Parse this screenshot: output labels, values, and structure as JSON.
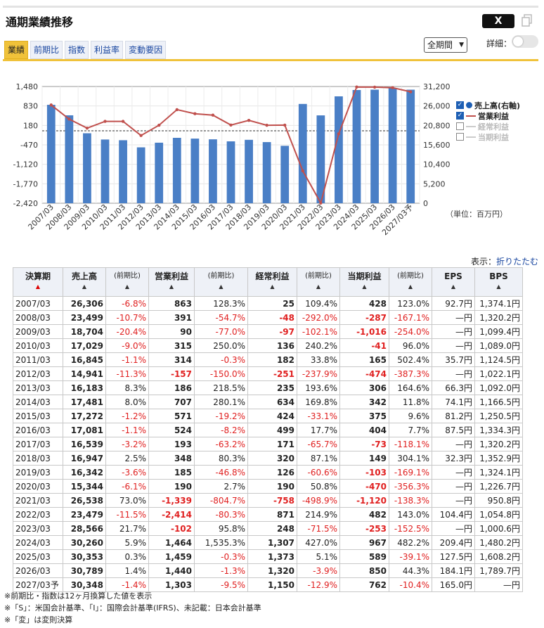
{
  "title": "通期業績推移",
  "share_x_label": "X",
  "tabs": [
    "業績",
    "前期比",
    "指数",
    "利益率",
    "変動要因"
  ],
  "active_tab": "業績",
  "period_select": "全期間",
  "detail_label": "詳細：",
  "unit_label": "（単位：百万円）",
  "display_label": "表示：",
  "collapse_link": "折りたたむ",
  "legend": [
    {
      "name": "売上高(右軸)",
      "checked": true
    },
    {
      "name": "営業利益",
      "checked": true
    },
    {
      "name": "経常利益",
      "checked": false
    },
    {
      "name": "当期利益",
      "checked": false
    }
  ],
  "colors": {
    "bar": "#4a7fc6",
    "line": "#c0504d",
    "accent": "#f0c23a",
    "negative": "#e02020"
  },
  "chart_data": {
    "type": "bar",
    "categories": [
      "2007/03",
      "2008/03",
      "2009/03",
      "2010/03",
      "2011/03",
      "2012/03",
      "2013/03",
      "2014/03",
      "2015/03",
      "2016/03",
      "2017/03",
      "2018/03",
      "2019/03",
      "2020/03",
      "2021/03",
      "2022/03",
      "2023/03",
      "2024/03",
      "2025/03",
      "2026/03",
      "2027/03予"
    ],
    "series": [
      {
        "name": "売上高(右軸)",
        "type": "bar",
        "axis": "right",
        "values": [
          26306,
          23499,
          18704,
          17029,
          16845,
          14941,
          16183,
          17481,
          17272,
          17081,
          16539,
          16947,
          16342,
          15344,
          26538,
          23479,
          28566,
          30260,
          30353,
          30789,
          30348
        ]
      },
      {
        "name": "営業利益",
        "type": "line",
        "axis": "left",
        "values": [
          863,
          391,
          90,
          315,
          314,
          -157,
          186,
          707,
          571,
          524,
          193,
          348,
          185,
          190,
          -1339,
          -2414,
          -102,
          1464,
          1459,
          1440,
          1303
        ]
      }
    ],
    "left_ticks": [
      "1,480",
      "830",
      "180",
      "-470",
      "-1,120",
      "-1,770",
      "-2,420"
    ],
    "right_ticks": [
      "31,200",
      "26,000",
      "20,800",
      "15,600",
      "10,400",
      "5,200",
      "0"
    ],
    "ylim_left": [
      -2420,
      1480
    ],
    "ylim_right": [
      0,
      31200
    ],
    "zero_line": "dashed",
    "legend_position": "right"
  },
  "table": {
    "headers": [
      "決算期",
      "売上高",
      "(前期比)",
      "営業利益",
      "(前期比)",
      "経常利益",
      "(前期比)",
      "当期利益",
      "(前期比)",
      "EPS",
      "BPS"
    ],
    "rows": [
      [
        "2007/03",
        "26,306",
        "-6.8%",
        "863",
        "128.3%",
        "25",
        "109.4%",
        "428",
        "123.0%",
        "92.7円",
        "1,374.1円"
      ],
      [
        "2008/03",
        "23,499",
        "-10.7%",
        "391",
        "-54.7%",
        "-48",
        "-292.0%",
        "-287",
        "-167.1%",
        "—円",
        "1,320.2円"
      ],
      [
        "2009/03",
        "18,704",
        "-20.4%",
        "90",
        "-77.0%",
        "-97",
        "-102.1%",
        "-1,016",
        "-254.0%",
        "—円",
        "1,099.4円"
      ],
      [
        "2010/03",
        "17,029",
        "-9.0%",
        "315",
        "250.0%",
        "136",
        "240.2%",
        "-41",
        "96.0%",
        "—円",
        "1,089.0円"
      ],
      [
        "2011/03",
        "16,845",
        "-1.1%",
        "314",
        "-0.3%",
        "182",
        "33.8%",
        "165",
        "502.4%",
        "35.7円",
        "1,124.5円"
      ],
      [
        "2012/03",
        "14,941",
        "-11.3%",
        "-157",
        "-150.0%",
        "-251",
        "-237.9%",
        "-474",
        "-387.3%",
        "—円",
        "1,022.1円"
      ],
      [
        "2013/03",
        "16,183",
        "8.3%",
        "186",
        "218.5%",
        "235",
        "193.6%",
        "306",
        "164.6%",
        "66.3円",
        "1,092.0円"
      ],
      [
        "2014/03",
        "17,481",
        "8.0%",
        "707",
        "280.1%",
        "634",
        "169.8%",
        "342",
        "11.8%",
        "74.1円",
        "1,166.5円"
      ],
      [
        "2015/03",
        "17,272",
        "-1.2%",
        "571",
        "-19.2%",
        "424",
        "-33.1%",
        "375",
        "9.6%",
        "81.2円",
        "1,250.5円"
      ],
      [
        "2016/03",
        "17,081",
        "-1.1%",
        "524",
        "-8.2%",
        "499",
        "17.7%",
        "404",
        "7.7%",
        "87.5円",
        "1,334.3円"
      ],
      [
        "2017/03",
        "16,539",
        "-3.2%",
        "193",
        "-63.2%",
        "171",
        "-65.7%",
        "-73",
        "-118.1%",
        "—円",
        "1,320.2円"
      ],
      [
        "2018/03",
        "16,947",
        "2.5%",
        "348",
        "80.3%",
        "320",
        "87.1%",
        "149",
        "304.1%",
        "32.3円",
        "1,352.9円"
      ],
      [
        "2019/03",
        "16,342",
        "-3.6%",
        "185",
        "-46.8%",
        "126",
        "-60.6%",
        "-103",
        "-169.1%",
        "—円",
        "1,324.1円"
      ],
      [
        "2020/03",
        "15,344",
        "-6.1%",
        "190",
        "2.7%",
        "190",
        "50.8%",
        "-470",
        "-356.3%",
        "—円",
        "1,226.7円"
      ],
      [
        "2021/03",
        "26,538",
        "73.0%",
        "-1,339",
        "-804.7%",
        "-758",
        "-498.9%",
        "-1,120",
        "-138.3%",
        "—円",
        "950.8円"
      ],
      [
        "2022/03",
        "23,479",
        "-11.5%",
        "-2,414",
        "-80.3%",
        "871",
        "214.9%",
        "482",
        "143.0%",
        "104.4円",
        "1,054.8円"
      ],
      [
        "2023/03",
        "28,566",
        "21.7%",
        "-102",
        "95.8%",
        "248",
        "-71.5%",
        "-253",
        "-152.5%",
        "—円",
        "1,000.6円"
      ],
      [
        "2024/03",
        "30,260",
        "5.9%",
        "1,464",
        "1,535.3%",
        "1,307",
        "427.0%",
        "967",
        "482.2%",
        "209.4円",
        "1,480.2円"
      ],
      [
        "2025/03",
        "30,353",
        "0.3%",
        "1,459",
        "-0.3%",
        "1,373",
        "5.1%",
        "589",
        "-39.1%",
        "127.5円",
        "1,608.2円"
      ],
      [
        "2026/03",
        "30,789",
        "1.4%",
        "1,440",
        "-1.3%",
        "1,320",
        "-3.9%",
        "850",
        "44.3%",
        "184.1円",
        "1,789.7円"
      ],
      [
        "2027/03予",
        "30,348",
        "-1.4%",
        "1,303",
        "-9.5%",
        "1,150",
        "-12.9%",
        "762",
        "-10.4%",
        "165.0円",
        "—円"
      ]
    ]
  },
  "notes": [
    "※前期比・指数は12ヶ月換算した値を表示",
    "※「S」：米国会計基準、「I」：国際会計基準(IFRS)、未記載：日本会計基準",
    "※「変」は変則決算"
  ]
}
